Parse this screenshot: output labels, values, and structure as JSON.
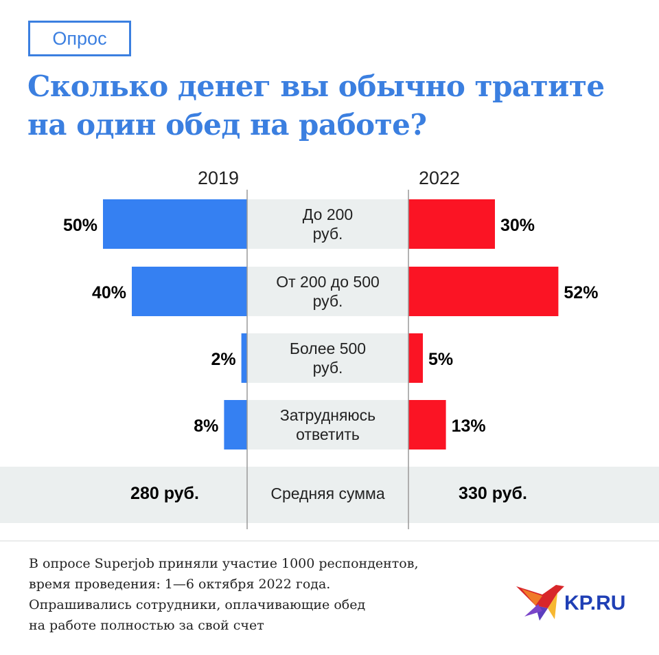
{
  "tag": "Опрос",
  "title_lines": [
    "Сколько денег вы обычно тратите",
    "на один обед на работе?"
  ],
  "chart_data": {
    "type": "bar",
    "orientation": "horizontal-butterfly",
    "categories": [
      [
        "До 200",
        "руб."
      ],
      [
        "От 200 до 500",
        "руб."
      ],
      [
        "Более 500",
        "руб."
      ],
      [
        "Затрудняюсь",
        "ответить"
      ]
    ],
    "series": [
      {
        "name": "2019",
        "values": [
          50,
          40,
          2,
          8
        ],
        "labels": [
          "50%",
          "40%",
          "2%",
          "8%"
        ],
        "color": "#3580f2"
      },
      {
        "name": "2022",
        "values": [
          30,
          52,
          5,
          13
        ],
        "labels": [
          "30%",
          "52%",
          "5%",
          "13%"
        ],
        "color": "#fb1424"
      }
    ],
    "unit": "%",
    "summary": {
      "label": "Средняя сумма",
      "values": [
        "280 руб.",
        "330 руб."
      ]
    },
    "category_band_color": "#ebefef"
  },
  "footnote": [
    "В опросе Superjob приняли участие 1000 респондентов,",
    "время проведения: 1—6 октября 2022 года.",
    "Опрашивались сотрудники, оплачивающие обед",
    "на работе полностью за свой счет"
  ],
  "logo": {
    "text": "KP.RU",
    "color": "#1f3fb5"
  }
}
